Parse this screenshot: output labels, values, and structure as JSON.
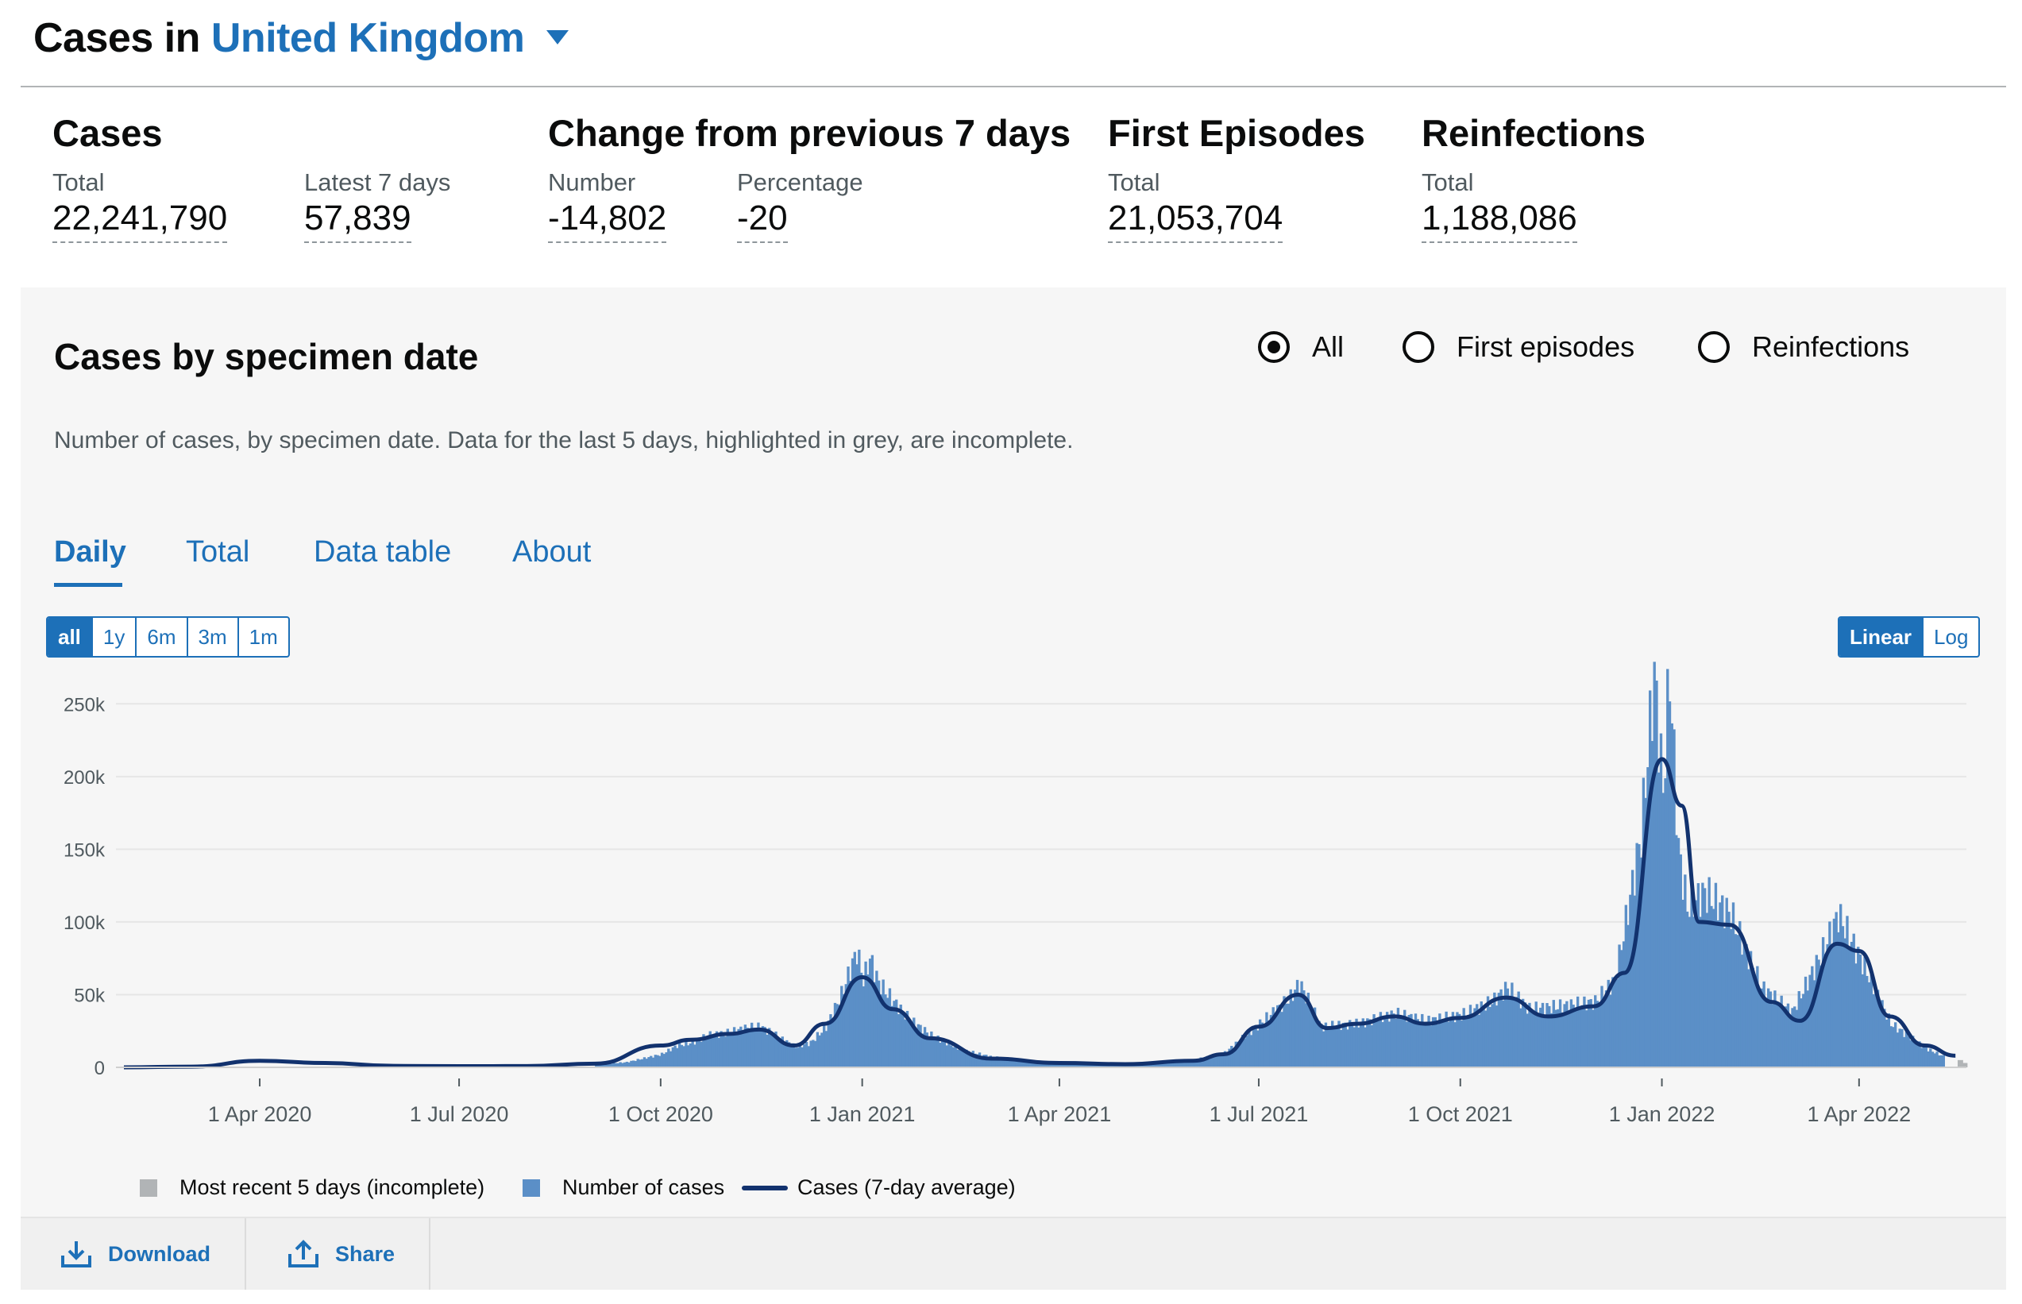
{
  "header": {
    "prefix": "Cases in",
    "area": "United Kingdom"
  },
  "headline": {
    "cases": {
      "title": "Cases",
      "total_label": "Total",
      "total": "22,241,790",
      "latest_label": "Latest 7 days",
      "latest": "57,839"
    },
    "change": {
      "title": "Change from previous 7 days",
      "number_label": "Number",
      "number": "-14,802",
      "percentage_label": "Percentage",
      "percentage": "-20"
    },
    "first_episodes": {
      "title": "First Episodes",
      "total_label": "Total",
      "total": "21,053,704"
    },
    "reinfections": {
      "title": "Reinfections",
      "total_label": "Total",
      "total": "1,188,086"
    }
  },
  "card": {
    "title": "Cases by specimen date",
    "radios": [
      {
        "label": "All",
        "selected": true
      },
      {
        "label": "First episodes",
        "selected": false
      },
      {
        "label": "Reinfections",
        "selected": false
      }
    ],
    "description": "Number of cases, by specimen date. Data for the last 5 days, highlighted in grey, are incomplete.",
    "tabs": [
      "Daily",
      "Total",
      "Data table",
      "About"
    ],
    "active_tab": "Daily",
    "range_buttons": [
      "all",
      "1y",
      "6m",
      "3m",
      "1m"
    ],
    "active_range": "all",
    "scale_buttons": [
      "Linear",
      "Log"
    ],
    "active_scale": "Linear",
    "legend": {
      "incomplete": "Most recent 5 days (incomplete)",
      "cases": "Number of cases",
      "average": "Cases (7-day average)"
    },
    "footer": {
      "download": "Download",
      "share": "Share"
    }
  },
  "colors": {
    "bar": "#5b8fc7",
    "line": "#12326e",
    "incomplete": "#b1b4b6",
    "accent": "#1d70b8",
    "grid": "#e6e6e6"
  },
  "chart_data": {
    "type": "bar",
    "x_ticks": [
      "1 Apr 2020",
      "1 Jul 2020",
      "1 Oct 2020",
      "1 Jan 2021",
      "1 Apr 2021",
      "1 Jul 2021",
      "1 Oct 2021",
      "1 Jan 2022",
      "1 Apr 2022"
    ],
    "x_tick_dates": [
      "2020-04-01",
      "2020-07-01",
      "2020-10-01",
      "2021-01-01",
      "2021-04-01",
      "2021-07-01",
      "2021-10-01",
      "2022-01-01",
      "2022-04-01"
    ],
    "y_ticks": [
      "0",
      "50k",
      "100k",
      "150k",
      "200k",
      "250k"
    ],
    "ylim": [
      0,
      260000
    ],
    "xlim": [
      "2020-01-30",
      "2022-05-20"
    ],
    "grid": true,
    "legend_position": "bottom",
    "series": [
      {
        "name": "Number of cases",
        "kind": "bar",
        "points": [
          [
            "2020-09-01",
            2000
          ],
          [
            "2020-09-15",
            3500
          ],
          [
            "2020-10-01",
            9000
          ],
          [
            "2020-10-08",
            15000
          ],
          [
            "2020-10-15",
            17000
          ],
          [
            "2020-10-22",
            22000
          ],
          [
            "2020-11-01",
            24000
          ],
          [
            "2020-11-08",
            27000
          ],
          [
            "2020-11-15",
            28000
          ],
          [
            "2020-11-22",
            22000
          ],
          [
            "2020-12-01",
            14000
          ],
          [
            "2020-12-08",
            17000
          ],
          [
            "2020-12-15",
            28000
          ],
          [
            "2020-12-22",
            50000
          ],
          [
            "2020-12-29",
            80000
          ],
          [
            "2021-01-01",
            60000
          ],
          [
            "2021-01-04",
            75000
          ],
          [
            "2021-01-08",
            58000
          ],
          [
            "2021-01-15",
            45000
          ],
          [
            "2021-01-22",
            33000
          ],
          [
            "2021-02-01",
            22000
          ],
          [
            "2021-02-15",
            12000
          ],
          [
            "2021-03-01",
            7000
          ],
          [
            "2021-04-01",
            3000
          ],
          [
            "2021-05-01",
            2500
          ],
          [
            "2021-06-01",
            5000
          ],
          [
            "2021-06-15",
            10000
          ],
          [
            "2021-07-01",
            30000
          ],
          [
            "2021-07-15",
            48000
          ],
          [
            "2021-07-19",
            58000
          ],
          [
            "2021-07-29",
            28000
          ],
          [
            "2021-08-15",
            30000
          ],
          [
            "2021-09-01",
            37000
          ],
          [
            "2021-09-15",
            32000
          ],
          [
            "2021-10-01",
            36000
          ],
          [
            "2021-10-15",
            45000
          ],
          [
            "2021-10-22",
            55000
          ],
          [
            "2021-11-01",
            40000
          ],
          [
            "2021-11-15",
            42000
          ],
          [
            "2021-12-01",
            45000
          ],
          [
            "2021-12-10",
            60000
          ],
          [
            "2021-12-15",
            100000
          ],
          [
            "2021-12-22",
            160000
          ],
          [
            "2021-12-28",
            270000
          ],
          [
            "2022-01-01",
            190000
          ],
          [
            "2022-01-04",
            272000
          ],
          [
            "2022-01-08",
            150000
          ],
          [
            "2022-01-12",
            110000
          ],
          [
            "2022-01-20",
            120000
          ],
          [
            "2022-02-01",
            105000
          ],
          [
            "2022-02-15",
            55000
          ],
          [
            "2022-03-01",
            38000
          ],
          [
            "2022-03-15",
            80000
          ],
          [
            "2022-03-22",
            105000
          ],
          [
            "2022-04-01",
            75000
          ],
          [
            "2022-04-15",
            30000
          ],
          [
            "2022-05-01",
            13000
          ],
          [
            "2022-05-10",
            7000
          ]
        ]
      },
      {
        "name": "Cases (7-day average)",
        "kind": "line",
        "points": [
          [
            "2020-01-30",
            0
          ],
          [
            "2020-03-01",
            500
          ],
          [
            "2020-04-01",
            4500
          ],
          [
            "2020-05-01",
            3000
          ],
          [
            "2020-06-01",
            1000
          ],
          [
            "2020-07-01",
            800
          ],
          [
            "2020-08-01",
            900
          ],
          [
            "2020-09-01",
            2500
          ],
          [
            "2020-10-01",
            15000
          ],
          [
            "2020-10-15",
            19000
          ],
          [
            "2020-11-01",
            23000
          ],
          [
            "2020-11-15",
            26000
          ],
          [
            "2020-12-01",
            15000
          ],
          [
            "2020-12-15",
            30000
          ],
          [
            "2021-01-01",
            62000
          ],
          [
            "2021-01-15",
            40000
          ],
          [
            "2021-02-01",
            20000
          ],
          [
            "2021-03-01",
            6000
          ],
          [
            "2021-04-01",
            3000
          ],
          [
            "2021-05-01",
            2200
          ],
          [
            "2021-06-01",
            4500
          ],
          [
            "2021-06-15",
            9000
          ],
          [
            "2021-07-01",
            28000
          ],
          [
            "2021-07-19",
            50000
          ],
          [
            "2021-08-01",
            27000
          ],
          [
            "2021-08-15",
            30000
          ],
          [
            "2021-09-01",
            35000
          ],
          [
            "2021-09-15",
            30000
          ],
          [
            "2021-10-01",
            34000
          ],
          [
            "2021-10-22",
            48000
          ],
          [
            "2021-11-10",
            35000
          ],
          [
            "2021-12-01",
            42000
          ],
          [
            "2021-12-15",
            65000
          ],
          [
            "2022-01-01",
            212000
          ],
          [
            "2022-01-10",
            180000
          ],
          [
            "2022-01-18",
            100000
          ],
          [
            "2022-02-01",
            98000
          ],
          [
            "2022-02-20",
            45000
          ],
          [
            "2022-03-05",
            32000
          ],
          [
            "2022-03-22",
            85000
          ],
          [
            "2022-04-01",
            80000
          ],
          [
            "2022-04-15",
            35000
          ],
          [
            "2022-05-01",
            15000
          ],
          [
            "2022-05-15",
            8000
          ]
        ]
      },
      {
        "name": "Most recent 5 days (incomplete)",
        "kind": "bar",
        "points": [
          [
            "2022-05-16",
            5000
          ],
          [
            "2022-05-18",
            3000
          ]
        ]
      }
    ]
  }
}
